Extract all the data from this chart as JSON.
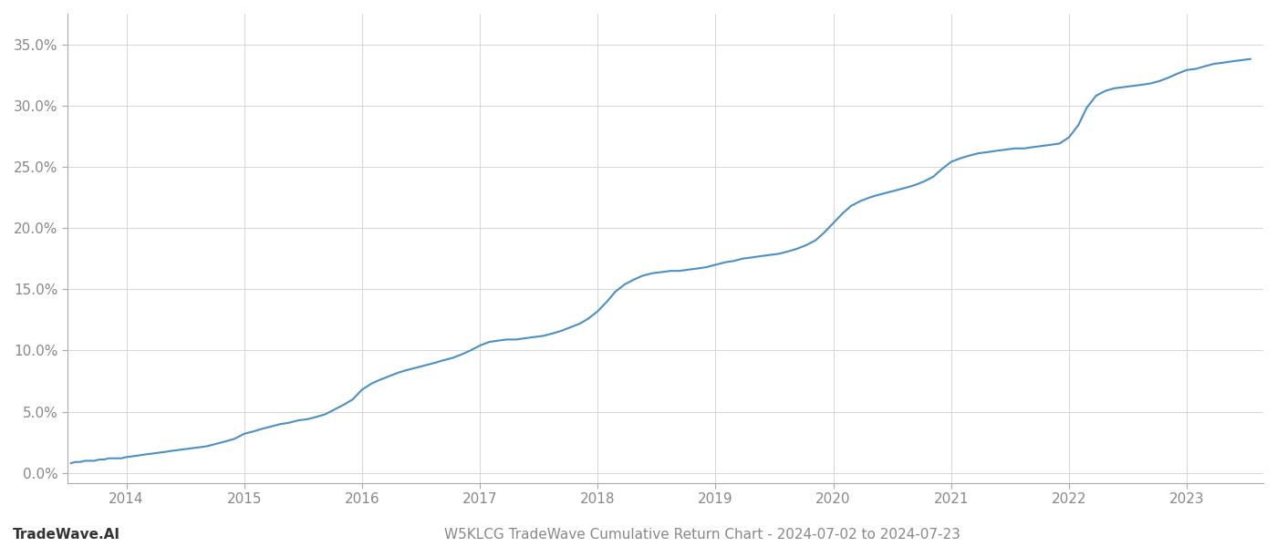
{
  "title_bottom": "W5KLCG TradeWave Cumulative Return Chart - 2024-07-02 to 2024-07-23",
  "watermark": "TradeWave.AI",
  "line_color": "#4a90c4",
  "background_color": "#ffffff",
  "grid_color": "#d0d0d0",
  "x_years": [
    2014,
    2015,
    2016,
    2017,
    2018,
    2019,
    2020,
    2021,
    2022,
    2023
  ],
  "x_data": [
    2013.53,
    2013.57,
    2013.61,
    2013.65,
    2013.69,
    2013.73,
    2013.77,
    2013.81,
    2013.85,
    2013.88,
    2013.92,
    2013.96,
    2014.0,
    2014.08,
    2014.15,
    2014.23,
    2014.31,
    2014.38,
    2014.46,
    2014.54,
    2014.62,
    2014.69,
    2014.77,
    2014.85,
    2014.92,
    2015.0,
    2015.08,
    2015.15,
    2015.23,
    2015.31,
    2015.38,
    2015.46,
    2015.54,
    2015.62,
    2015.69,
    2015.77,
    2015.85,
    2015.92,
    2016.0,
    2016.08,
    2016.15,
    2016.23,
    2016.31,
    2016.38,
    2016.46,
    2016.54,
    2016.62,
    2016.69,
    2016.77,
    2016.85,
    2016.92,
    2017.0,
    2017.08,
    2017.15,
    2017.23,
    2017.31,
    2017.38,
    2017.46,
    2017.54,
    2017.62,
    2017.69,
    2017.77,
    2017.85,
    2017.92,
    2018.0,
    2018.08,
    2018.15,
    2018.23,
    2018.31,
    2018.38,
    2018.46,
    2018.54,
    2018.62,
    2018.69,
    2018.77,
    2018.85,
    2018.92,
    2019.0,
    2019.08,
    2019.15,
    2019.23,
    2019.31,
    2019.38,
    2019.46,
    2019.54,
    2019.62,
    2019.69,
    2019.77,
    2019.85,
    2019.92,
    2020.0,
    2020.08,
    2020.15,
    2020.23,
    2020.31,
    2020.38,
    2020.46,
    2020.54,
    2020.62,
    2020.69,
    2020.77,
    2020.85,
    2020.92,
    2021.0,
    2021.08,
    2021.15,
    2021.23,
    2021.31,
    2021.38,
    2021.46,
    2021.54,
    2021.62,
    2021.69,
    2021.77,
    2021.85,
    2021.92,
    2022.0,
    2022.08,
    2022.15,
    2022.23,
    2022.31,
    2022.38,
    2022.46,
    2022.54,
    2022.62,
    2022.69,
    2022.77,
    2022.85,
    2022.92,
    2023.0,
    2023.08,
    2023.15,
    2023.23,
    2023.31,
    2023.38,
    2023.46,
    2023.54
  ],
  "y_data": [
    0.008,
    0.009,
    0.009,
    0.01,
    0.01,
    0.01,
    0.011,
    0.011,
    0.012,
    0.012,
    0.012,
    0.012,
    0.013,
    0.014,
    0.015,
    0.016,
    0.017,
    0.018,
    0.019,
    0.02,
    0.021,
    0.022,
    0.024,
    0.026,
    0.028,
    0.032,
    0.034,
    0.036,
    0.038,
    0.04,
    0.041,
    0.043,
    0.044,
    0.046,
    0.048,
    0.052,
    0.056,
    0.06,
    0.068,
    0.073,
    0.076,
    0.079,
    0.082,
    0.084,
    0.086,
    0.088,
    0.09,
    0.092,
    0.094,
    0.097,
    0.1,
    0.104,
    0.107,
    0.108,
    0.109,
    0.109,
    0.11,
    0.111,
    0.112,
    0.114,
    0.116,
    0.119,
    0.122,
    0.126,
    0.132,
    0.14,
    0.148,
    0.154,
    0.158,
    0.161,
    0.163,
    0.164,
    0.165,
    0.165,
    0.166,
    0.167,
    0.168,
    0.17,
    0.172,
    0.173,
    0.175,
    0.176,
    0.177,
    0.178,
    0.179,
    0.181,
    0.183,
    0.186,
    0.19,
    0.196,
    0.204,
    0.212,
    0.218,
    0.222,
    0.225,
    0.227,
    0.229,
    0.231,
    0.233,
    0.235,
    0.238,
    0.242,
    0.248,
    0.254,
    0.257,
    0.259,
    0.261,
    0.262,
    0.263,
    0.264,
    0.265,
    0.265,
    0.266,
    0.267,
    0.268,
    0.269,
    0.274,
    0.284,
    0.298,
    0.308,
    0.312,
    0.314,
    0.315,
    0.316,
    0.317,
    0.318,
    0.32,
    0.323,
    0.326,
    0.329,
    0.33,
    0.332,
    0.334,
    0.335,
    0.336,
    0.337,
    0.338
  ],
  "ylim": [
    -0.008,
    0.375
  ],
  "xlim": [
    2013.5,
    2023.65
  ],
  "yticks": [
    0.0,
    0.05,
    0.1,
    0.15,
    0.2,
    0.25,
    0.3,
    0.35
  ],
  "ytick_labels": [
    "0.0%",
    "5.0%",
    "10.0%",
    "15.0%",
    "20.0%",
    "25.0%",
    "30.0%",
    "35.0%"
  ],
  "line_width": 1.5,
  "title_fontsize": 11,
  "watermark_fontsize": 11,
  "tick_fontsize": 11,
  "tick_color": "#888888"
}
